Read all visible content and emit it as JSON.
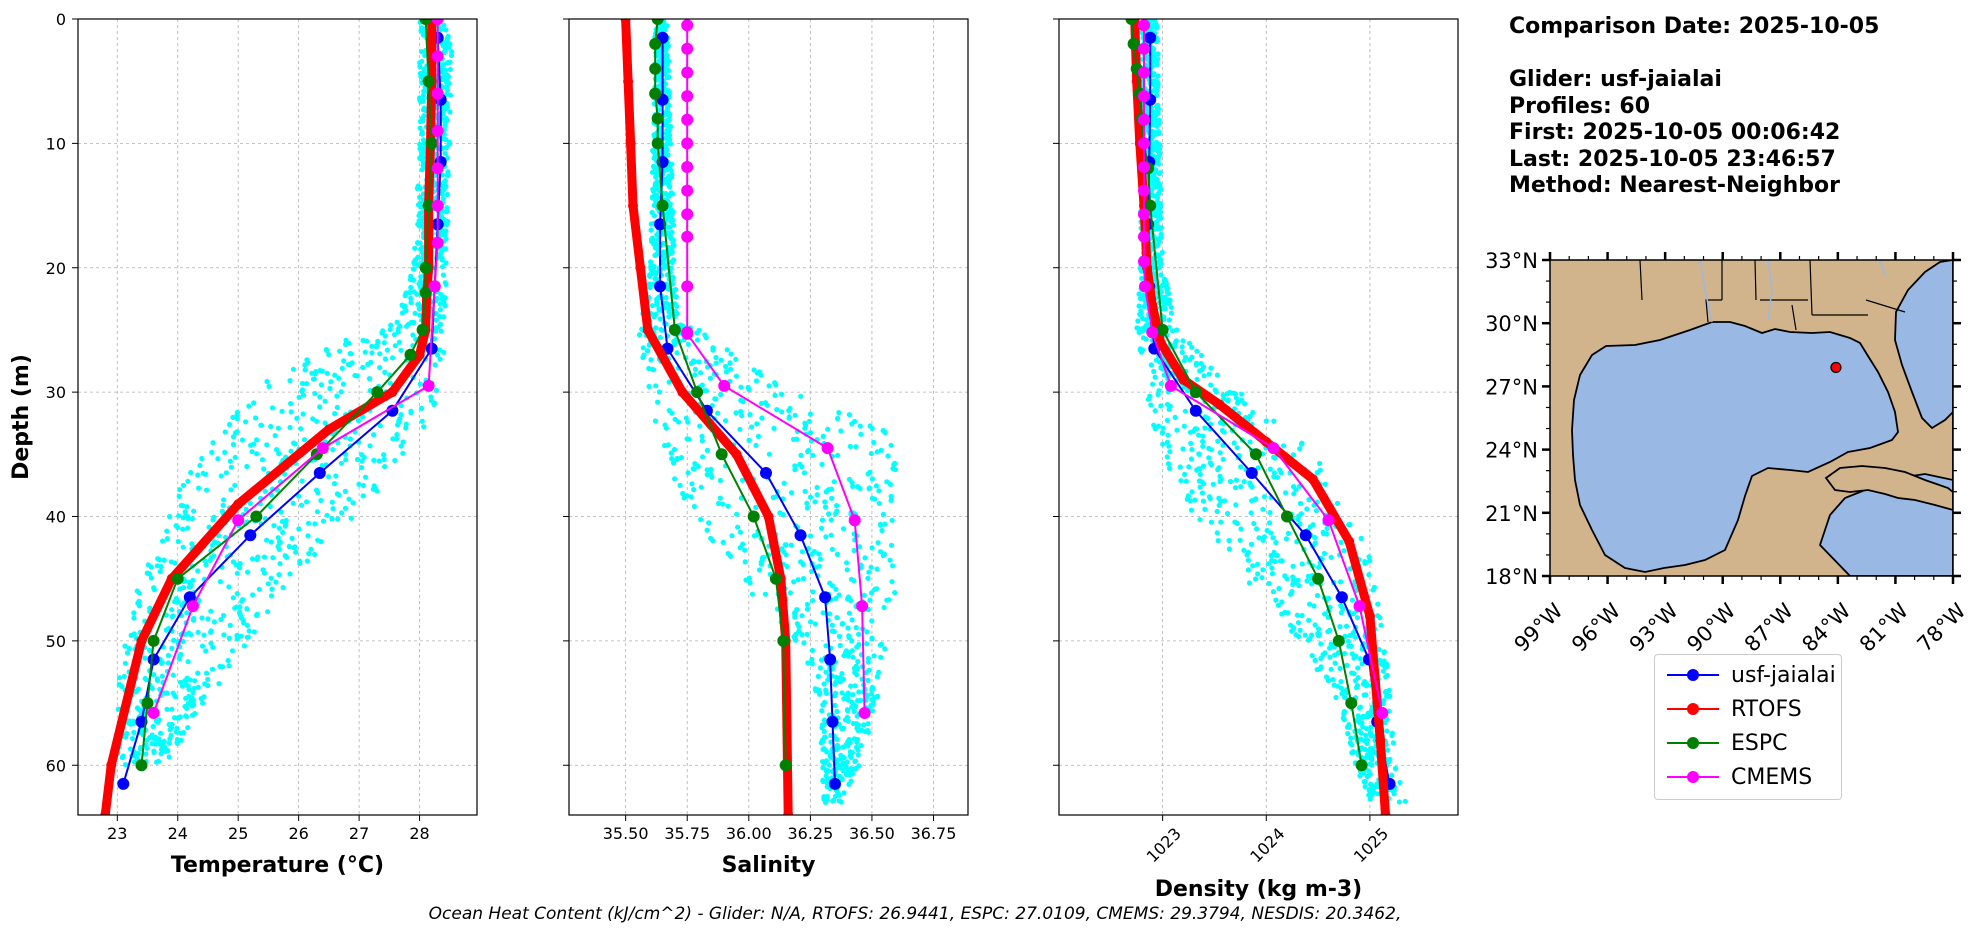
{
  "colors": {
    "glider": "#0000ff",
    "rtofs": "#ff0000",
    "espc": "#008000",
    "cmems": "#ff00ff",
    "scatter": "#00ffff",
    "land": "#d2b48c",
    "ocean": "#9ab8e4",
    "grid": "#b0b0b0"
  },
  "info": {
    "comparison_date": "Comparison Date: 2025-10-05",
    "glider": "Glider: usf-jaialai",
    "profiles": "Profiles: 60",
    "first": "First: 2025-10-05 00:06:42",
    "last": "Last: 2025-10-05 23:46:57",
    "method": "Method: Nearest-Neighbor"
  },
  "footer": "Ocean Heat Content (kJ/cm^2) - Glider: N/A,  RTOFS: 26.9441,  ESPC: 27.0109,  CMEMS: 29.3794,  NESDIS: 20.3462,",
  "legend": [
    {
      "label": "usf-jaialai",
      "color": "#0000ff"
    },
    {
      "label": "RTOFS",
      "color": "#ff0000"
    },
    {
      "label": "ESPC",
      "color": "#008000"
    },
    {
      "label": "CMEMS",
      "color": "#ff00ff"
    }
  ],
  "chart_data": [
    {
      "type": "line",
      "xlabel": "Temperature (°C)",
      "ylabel": "Depth (m)",
      "xlim": [
        22.35,
        28.95
      ],
      "ylim": [
        64,
        0
      ],
      "xticks": [
        23,
        24,
        25,
        26,
        27,
        28
      ],
      "xtick_labels": [
        "23",
        "24",
        "25",
        "26",
        "27",
        "28"
      ],
      "yticks": [
        0,
        10,
        20,
        30,
        40,
        50,
        60
      ],
      "ytick_labels": [
        "0",
        "10",
        "20",
        "30",
        "40",
        "50",
        "60"
      ],
      "scatter_band": [
        [
          0,
          28.0,
          28.55
        ],
        [
          10,
          28.0,
          28.5
        ],
        [
          20,
          27.9,
          28.45
        ],
        [
          24,
          27.6,
          28.45
        ],
        [
          27,
          26.2,
          28.4
        ],
        [
          29,
          25.5,
          28.35
        ],
        [
          32,
          24.9,
          28.2
        ],
        [
          35,
          24.4,
          27.8
        ],
        [
          38,
          24.0,
          27.3
        ],
        [
          42,
          23.7,
          26.5
        ],
        [
          46,
          23.3,
          25.7
        ],
        [
          50,
          23.1,
          25.2
        ],
        [
          54,
          23.0,
          24.6
        ],
        [
          57,
          23.0,
          24.2
        ],
        [
          60,
          23.0,
          23.8
        ]
      ],
      "series": [
        {
          "name": "usf-jaialai",
          "x": [
            28.3,
            28.35,
            28.35,
            28.3,
            28.25,
            28.2,
            27.55,
            26.35,
            25.2,
            24.2,
            23.6,
            23.4,
            23.1
          ],
          "depth": [
            1.5,
            6.5,
            11.5,
            16.5,
            21.5,
            26.5,
            31.5,
            36.5,
            41.5,
            46.5,
            51.5,
            56.5,
            61.5
          ]
        },
        {
          "name": "RTOFS",
          "x": [
            28.2,
            28.2,
            28.18,
            28.15,
            28.15,
            28.12,
            28.1,
            28.0,
            27.55,
            26.5,
            25.0,
            23.9,
            23.4,
            22.9,
            22.8
          ],
          "depth": [
            0,
            5,
            10,
            15,
            20,
            22,
            25,
            27,
            30,
            33,
            39,
            45,
            50,
            60,
            64
          ]
        },
        {
          "name": "ESPC",
          "x": [
            28.1,
            28.15,
            28.2,
            28.15,
            28.1,
            28.1,
            28.05,
            27.85,
            27.3,
            26.3,
            25.3,
            24.0,
            23.6,
            23.5,
            23.4
          ],
          "depth": [
            0,
            5,
            10,
            15,
            20,
            22,
            25,
            27,
            30,
            35,
            40,
            45,
            50,
            55,
            60
          ]
        },
        {
          "name": "CMEMS",
          "x": [
            28.3,
            28.3,
            28.3,
            28.3,
            28.3,
            28.3,
            28.3,
            28.25,
            28.15,
            26.4,
            25.0,
            24.25,
            23.6
          ],
          "depth": [
            0,
            3,
            6,
            9,
            12,
            15,
            18,
            21.5,
            29.5,
            34.5,
            40.3,
            47.2,
            55.8
          ]
        }
      ]
    },
    {
      "type": "line",
      "xlabel": "Salinity",
      "xlim": [
        35.27,
        36.89
      ],
      "ylim": [
        64,
        0
      ],
      "xticks": [
        35.5,
        35.75,
        36.0,
        36.25,
        36.5,
        36.75
      ],
      "xtick_labels": [
        "35.50",
        "35.75",
        "36.00",
        "36.25",
        "36.50",
        "36.75"
      ],
      "scatter_band": [
        [
          0,
          35.62,
          35.67
        ],
        [
          20,
          35.6,
          35.7
        ],
        [
          24,
          35.56,
          35.72
        ],
        [
          27,
          35.55,
          35.95
        ],
        [
          30,
          35.57,
          36.2
        ],
        [
          33,
          35.62,
          36.55
        ],
        [
          36,
          35.67,
          36.62
        ],
        [
          39,
          35.75,
          36.58
        ],
        [
          42,
          35.85,
          36.6
        ],
        [
          45,
          35.95,
          36.6
        ],
        [
          48,
          36.1,
          36.58
        ],
        [
          51,
          36.22,
          36.55
        ],
        [
          55,
          36.28,
          36.52
        ],
        [
          60,
          36.3,
          36.45
        ],
        [
          63,
          36.3,
          36.38
        ]
      ],
      "series": [
        {
          "name": "usf-jaialai",
          "x": [
            35.65,
            35.65,
            35.65,
            35.64,
            35.64,
            35.67,
            35.83,
            36.07,
            36.21,
            36.31,
            36.33,
            36.34,
            36.35
          ],
          "depth": [
            1.5,
            6.5,
            11.5,
            16.5,
            21.5,
            26.5,
            31.5,
            36.5,
            41.5,
            46.5,
            51.5,
            56.5,
            61.5
          ]
        },
        {
          "name": "RTOFS",
          "x": [
            35.5,
            35.51,
            35.52,
            35.53,
            35.56,
            35.59,
            35.73,
            35.95,
            36.08,
            36.13,
            36.15,
            36.16
          ],
          "depth": [
            0,
            5,
            10,
            15,
            20,
            25,
            30,
            35,
            40,
            45,
            50,
            64
          ]
        },
        {
          "name": "ESPC",
          "x": [
            35.63,
            35.62,
            35.62,
            35.62,
            35.63,
            35.63,
            35.65,
            35.7,
            35.79,
            35.89,
            36.02,
            36.11,
            36.14,
            36.15
          ],
          "depth": [
            0,
            2,
            4,
            6,
            8,
            10,
            15,
            25,
            30,
            35,
            40,
            45,
            50,
            60
          ]
        },
        {
          "name": "CMEMS",
          "x": [
            35.75,
            35.75,
            35.75,
            35.75,
            35.75,
            35.75,
            35.75,
            35.75,
            35.75,
            35.75,
            35.75,
            35.75,
            35.75,
            35.9,
            36.32,
            36.43,
            36.46,
            36.47
          ],
          "depth": [
            0.5,
            2.4,
            4.3,
            6.2,
            8.1,
            10,
            11.9,
            13.8,
            15.7,
            17.5,
            21.5,
            25.2,
            25.3,
            29.5,
            34.5,
            40.3,
            47.2,
            55.8
          ]
        }
      ]
    },
    {
      "type": "line",
      "xlabel": "Density (kg m-3)",
      "xlim": [
        1022.0,
        1025.85
      ],
      "ylim": [
        64,
        0
      ],
      "xticks": [
        1023,
        1024,
        1025
      ],
      "xtick_labels": [
        "1023",
        "1024",
        "1025"
      ],
      "scatter_band": [
        [
          0,
          1022.8,
          1022.95
        ],
        [
          20,
          1022.78,
          1023.0
        ],
        [
          25,
          1022.75,
          1023.15
        ],
        [
          28,
          1022.8,
          1023.5
        ],
        [
          31,
          1022.85,
          1023.9
        ],
        [
          34,
          1022.95,
          1024.35
        ],
        [
          37,
          1023.1,
          1024.65
        ],
        [
          40,
          1023.3,
          1024.85
        ],
        [
          43,
          1023.6,
          1025.0
        ],
        [
          46,
          1023.9,
          1025.1
        ],
        [
          50,
          1024.3,
          1025.15
        ],
        [
          55,
          1024.7,
          1025.2
        ],
        [
          60,
          1024.85,
          1025.25
        ],
        [
          63,
          1025.0,
          1025.35
        ]
      ],
      "series": [
        {
          "name": "usf-jaialai",
          "x": [
            1022.88,
            1022.88,
            1022.87,
            1022.86,
            1022.87,
            1022.92,
            1023.32,
            1023.86,
            1024.38,
            1024.73,
            1024.99,
            1025.07,
            1025.19
          ],
          "depth": [
            1.5,
            6.5,
            11.5,
            16.5,
            21.5,
            26.5,
            31.5,
            36.5,
            41.5,
            46.5,
            51.5,
            56.5,
            61.5
          ]
        },
        {
          "name": "RTOFS",
          "x": [
            1022.73,
            1022.75,
            1022.78,
            1022.82,
            1022.85,
            1022.9,
            1022.98,
            1023.2,
            1023.55,
            1024.0,
            1024.45,
            1024.8,
            1025.0,
            1025.1,
            1025.15
          ],
          "depth": [
            0,
            5,
            10,
            15,
            20,
            23,
            26,
            29,
            31,
            34,
            37,
            42,
            48,
            58,
            64
          ]
        },
        {
          "name": "ESPC",
          "x": [
            1022.7,
            1022.72,
            1022.75,
            1022.78,
            1022.8,
            1022.82,
            1022.86,
            1022.88,
            1023.0,
            1023.32,
            1023.9,
            1024.2,
            1024.5,
            1024.7,
            1024.82,
            1024.92
          ],
          "depth": [
            0,
            2,
            4,
            6,
            8,
            10,
            12,
            15,
            25,
            30,
            35,
            40,
            45,
            50,
            55,
            60
          ]
        },
        {
          "name": "CMEMS",
          "x": [
            1022.82,
            1022.82,
            1022.82,
            1022.82,
            1022.82,
            1022.82,
            1022.82,
            1022.82,
            1022.82,
            1022.82,
            1022.82,
            1022.83,
            1022.9,
            1023.08,
            1024.07,
            1024.6,
            1024.9,
            1025.12
          ],
          "depth": [
            0.5,
            2.4,
            4.3,
            6.2,
            8.1,
            10,
            11.9,
            13.8,
            15.7,
            17.5,
            19.5,
            21.5,
            25.2,
            29.5,
            34.5,
            40.3,
            47.2,
            55.8
          ]
        }
      ]
    }
  ],
  "map": {
    "lon_ticks": [
      "99°W",
      "96°W",
      "93°W",
      "90°W",
      "87°W",
      "84°W",
      "81°W",
      "78°W"
    ],
    "lat_ticks": [
      "33°N",
      "30°N",
      "27°N",
      "24°N",
      "21°N",
      "18°N"
    ],
    "lon_values": [
      -99,
      -96,
      -93,
      -90,
      -87,
      -84,
      -81,
      -78
    ],
    "lat_values": [
      33,
      30,
      27,
      24,
      21,
      18
    ],
    "lon_range": [
      -99,
      -78
    ],
    "lat_range": [
      18,
      33
    ],
    "glider_position": [
      -84.1,
      27.9
    ]
  }
}
